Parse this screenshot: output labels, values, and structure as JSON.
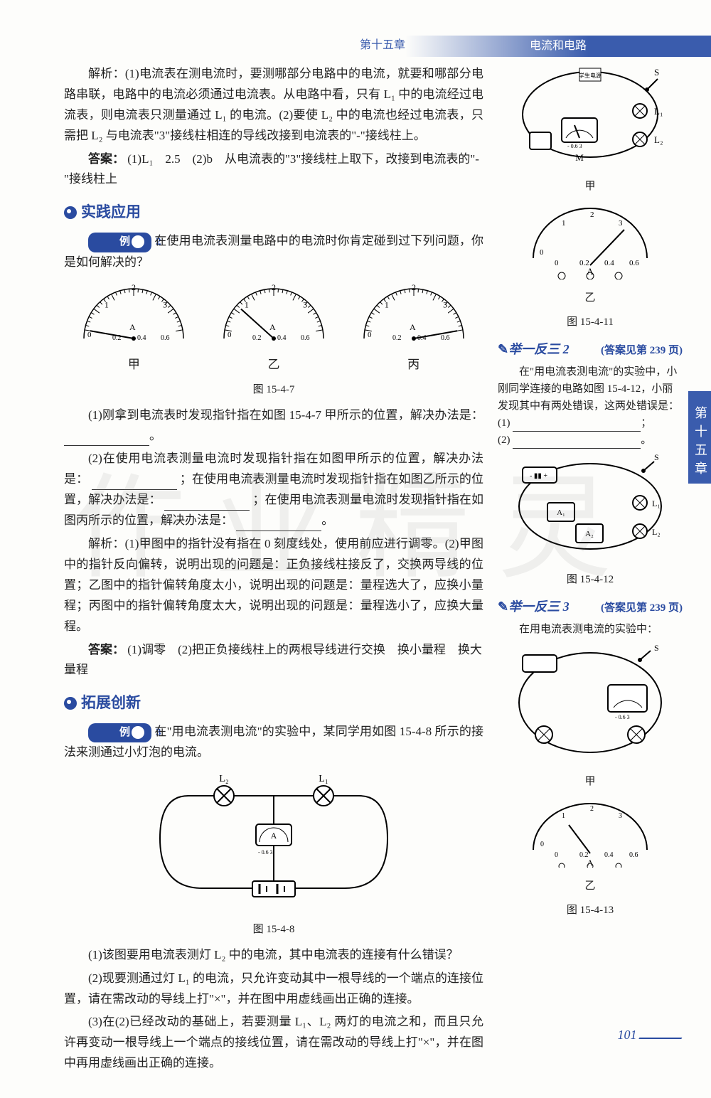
{
  "header": {
    "chapter_ref": "第十五章",
    "chapter_title": "电流和电路"
  },
  "side_nav": "第十五章",
  "page_number": "101",
  "watermark": "作业精灵",
  "main": {
    "jiexi1": "解析：(1)电流表在测电流时，要测哪部分电路中的电流，就要和哪部分电路串联，电路中的电流必须通过电流表。从电路中看，只有 L₁ 中的电流经过电流表，则电流表只测量通过 L₁ 的电流。(2)要使 L₂ 中的电流也经过电流表，只需把 L₂ 与电流表\"3\"接线柱相连的导线改接到电流表的\"-\"接线柱上。",
    "answer1_label": "答案：",
    "answer1": "(1)L₁　2.5　(2)b　从电流表的\"3\"接线柱上取下，改接到电流表的\"-\"接线柱上",
    "section_practice": "实践应用",
    "ex2_tag": "例",
    "ex2_num": "2",
    "ex2_q": "在使用电流表测量电路中的电流时你肯定碰到过下列问题，你是如何解决的？",
    "ammeter_labels": {
      "jia": "甲",
      "yi": "乙",
      "bing": "丙"
    },
    "fig7": "图 15-4-7",
    "ex2_p1": "(1)刚拿到电流表时发现指针指在如图 15-4-7 甲所示的位置，解决办法是：",
    "ex2_p2a": "(2)在使用电流表测量电流时发现指针指在如图甲所示的位置，解决办法是：",
    "ex2_p2b": "；在使用电流表测量电流时发现指针指在如图乙所示的位置，解决办法是：",
    "ex2_p2c": "；在使用电流表测量电流时发现指针指在如图丙所示的位置，解决办法是：",
    "ex2_jiexi": "解析：(1)甲图中的指针没有指在 0 刻度线处，使用前应进行调零。(2)甲图中的指针反向偏转，说明出现的问题是：正负接线柱接反了，交换两导线的位置；乙图中的指针偏转角度太小，说明出现的问题是：量程选大了，应换小量程；丙图中的指针偏转角度太大，说明出现的问题是：量程选小了，应换大量程。",
    "ex2_ans": "(1)调零　(2)把正负接线柱上的两根导线进行交换　换小量程　换大量程",
    "section_expand": "拓展创新",
    "ex3_tag": "例",
    "ex3_num": "3",
    "ex3_q": "在\"用电流表测电流\"的实验中，某同学用如图 15-4-8 所示的接法来测通过小灯泡的电流。",
    "fig8": "图 15-4-8",
    "ex3_p1": "(1)该图要用电流表测灯 L₂ 中的电流，其中电流表的连接有什么错误？",
    "ex3_p2": "(2)现要测通过灯 L₁ 的电流，只允许变动其中一根导线的一个端点的连接位置，请在需改动的导线上打\"×\"，并在图中用虚线画出正确的连接。",
    "ex3_p3": "(3)在(2)已经改动的基础上，若要测量 L₁、L₂ 两灯的电流之和，而且只允许再变动一根导线上一个端点的接线位置，请在需改动的导线上打\"×\"，并在图中再用虚线画出正确的连接。"
  },
  "side": {
    "fig11_jia": "甲",
    "fig11_yi": "乙",
    "fig11": "图 15-4-11",
    "variant2_title": "举一反三 2",
    "variant2_ans": "(答案见第 239 页)",
    "variant2_body": "在\"用电流表测电流\"的实验中，小刚同学连接的电路如图 15-4-12，小丽发现其中有两处错误，这两处错误是：",
    "variant2_b1": "(1)",
    "variant2_b2": "(2)",
    "fig12": "图 15-4-12",
    "variant3_title": "举一反三 3",
    "variant3_ans": "(答案见第 239 页)",
    "variant3_body": "在用电流表测电流的实验中：",
    "fig13_jia": "甲",
    "fig13_yi": "乙",
    "fig13": "图 15-4-13"
  },
  "meter_scale": {
    "top": [
      "1",
      "2",
      "3"
    ],
    "bottom": [
      "0",
      "0.2",
      "0.4",
      "0.6"
    ],
    "unit": "A",
    "needle_colors": {
      "jia": "#000",
      "yi": "#000",
      "bing": "#000"
    },
    "angles": {
      "jia": -100,
      "yi": -60,
      "bing": 100
    }
  },
  "circuit_fig8": {
    "components": [
      "L₁",
      "L₂",
      "A",
      "电池组"
    ],
    "ammeter_scale": [
      "0",
      "0.6",
      "3"
    ],
    "ammeter_ports": [
      "-",
      "0.6",
      "3"
    ]
  }
}
